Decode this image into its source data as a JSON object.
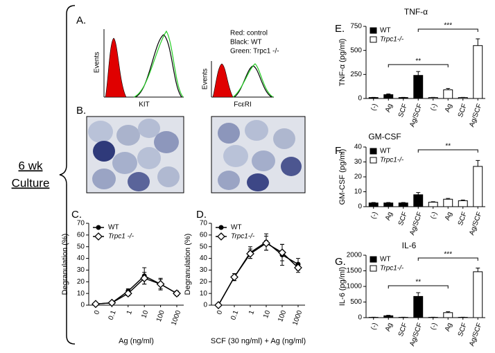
{
  "figure": {
    "side_label": [
      "6 wk",
      "Culture"
    ],
    "panel_a": {
      "label": "A.",
      "y_labels": [
        "Events",
        "Events"
      ],
      "x_labels": [
        "KIT",
        "FcεRI"
      ],
      "legend": [
        "Red: control",
        "Black: WT",
        "Green: Trpc1 -/-"
      ]
    },
    "panel_b": {
      "label": "B."
    }
  },
  "chart_data": [
    {
      "type": "line",
      "label": "C.",
      "x_label": "Ag (ng/ml)",
      "y_label": "Degranulation (%)",
      "categories": [
        "0",
        "0.1",
        "1",
        "10",
        "100",
        "1000"
      ],
      "ylim": [
        0,
        70
      ],
      "yticks": [
        0,
        10,
        20,
        30,
        40,
        50,
        60,
        70
      ],
      "legend": "upper left",
      "series": [
        {
          "name": "WT",
          "color": "#000000",
          "marker": "circle",
          "values": [
            1,
            2,
            12,
            25,
            18,
            10
          ],
          "errors": [
            0.5,
            0.5,
            2,
            7,
            5,
            2
          ]
        },
        {
          "name": "Trpc1 -/-",
          "color": "#000000",
          "marker": "diamond",
          "values": [
            1,
            2,
            10,
            23,
            18,
            10
          ],
          "errors": [
            0.5,
            0.5,
            2,
            5,
            4,
            2
          ]
        }
      ]
    },
    {
      "type": "line",
      "label": "D.",
      "x_label": "SCF (30 ng/ml) + Ag (ng/ml)",
      "y_label": "Degranulation (%)",
      "categories": [
        "0",
        "0.1",
        "1",
        "10",
        "100",
        "1000"
      ],
      "ylim": [
        0,
        70
      ],
      "yticks": [
        0,
        10,
        20,
        30,
        40,
        50,
        60,
        70
      ],
      "legend": "upper left",
      "series": [
        {
          "name": "WT",
          "color": "#000000",
          "marker": "circle",
          "values": [
            0,
            24,
            45,
            54,
            43,
            35
          ],
          "errors": [
            0,
            3,
            5,
            7,
            9,
            5
          ]
        },
        {
          "name": "Trpc1-/-",
          "color": "#000000",
          "marker": "diamond",
          "values": [
            0,
            24,
            44,
            53,
            45,
            32
          ],
          "errors": [
            0,
            3,
            4,
            6,
            7,
            4
          ]
        }
      ]
    },
    {
      "type": "bar",
      "label": "E.",
      "title": "TNF-α",
      "y_label": "TNF-α (pg/ml)",
      "categories": [
        "(-)",
        "Ag",
        "SCF",
        "Ag/SCF",
        "(-)",
        "Ag",
        "SCF",
        "Ag/SCF"
      ],
      "ylim": [
        0,
        750
      ],
      "yticks": [
        0,
        250,
        500,
        750
      ],
      "legend": "upper left",
      "annotations": [
        "***",
        "**"
      ],
      "series": [
        {
          "name": "WT",
          "color": "#000000",
          "values": [
            10,
            40,
            10,
            240,
            null,
            null,
            null,
            null
          ],
          "errors": [
            2,
            8,
            2,
            40,
            null,
            null,
            null,
            null
          ]
        },
        {
          "name": "Trpc1-/-",
          "color": "#ffffff",
          "values": [
            null,
            null,
            null,
            null,
            10,
            90,
            10,
            550
          ],
          "errors": [
            null,
            null,
            null,
            null,
            2,
            15,
            2,
            70
          ]
        }
      ]
    },
    {
      "type": "bar",
      "label": "F.",
      "title": "GM-CSF",
      "y_label": "GM-CSF (pg/ml)",
      "categories": [
        "(-)",
        "Ag",
        "SCF",
        "Ag/SCF",
        "(-)",
        "Ag",
        "SCF",
        "Ag/SCF"
      ],
      "ylim": [
        0,
        40
      ],
      "yticks": [
        0,
        10,
        20,
        30,
        40
      ],
      "legend": "upper left",
      "annotations": [
        "**"
      ],
      "series": [
        {
          "name": "WT",
          "color": "#000000",
          "values": [
            2.5,
            2.5,
            2.5,
            8,
            null,
            null,
            null,
            null
          ],
          "errors": [
            0.3,
            0.3,
            0.3,
            1.5,
            null,
            null,
            null,
            null
          ]
        },
        {
          "name": "Trpc1-/-",
          "color": "#ffffff",
          "values": [
            null,
            null,
            null,
            null,
            3,
            5,
            4,
            27
          ],
          "errors": [
            null,
            null,
            null,
            null,
            0.3,
            0.5,
            0.5,
            4
          ]
        }
      ]
    },
    {
      "type": "bar",
      "label": "G.",
      "title": "IL-6",
      "y_label": "IL-6 (pg/ml)",
      "categories": [
        "(-)",
        "Ag",
        "SCF",
        "Ag/SCF",
        "(-)",
        "Ag",
        "SCF",
        "Ag/SCF"
      ],
      "ylim": [
        0,
        2000
      ],
      "yticks": [
        0,
        500,
        1000,
        1500,
        2000
      ],
      "legend": "upper left",
      "annotations": [
        "***",
        "**"
      ],
      "series": [
        {
          "name": "WT",
          "color": "#000000",
          "values": [
            10,
            60,
            10,
            680,
            null,
            null,
            null,
            null
          ],
          "errors": [
            5,
            15,
            5,
            120,
            null,
            null,
            null,
            null
          ]
        },
        {
          "name": "Trpc1-/-",
          "color": "#ffffff",
          "values": [
            null,
            null,
            null,
            null,
            10,
            160,
            10,
            1470
          ],
          "errors": [
            null,
            null,
            null,
            null,
            5,
            30,
            5,
            120
          ]
        }
      ]
    }
  ]
}
